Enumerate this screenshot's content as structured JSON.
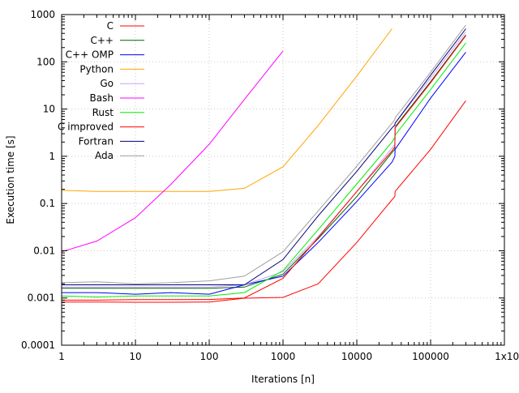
{
  "chart_data": {
    "type": "line",
    "title": "",
    "xlabel": "Iterations [n]",
    "ylabel": "Execution time [s]",
    "xscale": "log",
    "yscale": "log",
    "xlim": [
      1,
      1000000
    ],
    "ylim": [
      0.0001,
      1000
    ],
    "grid": true,
    "legend_position": "top-left",
    "x_tick_labels": [
      "1",
      "10",
      "100",
      "1000",
      "10000",
      "100000",
      "1x10^6"
    ],
    "y_tick_labels": [
      "0.0001",
      "0.001",
      "0.01",
      "0.1",
      "1",
      "10",
      "100",
      "1000"
    ],
    "series": [
      {
        "name": "C",
        "color": "#ff0000",
        "x": [
          1,
          3,
          10,
          30,
          100,
          300,
          1000,
          3000,
          10000,
          30000,
          32768,
          33000,
          100000,
          300000
        ],
        "y": [
          0.00082,
          0.00082,
          0.00081,
          0.00081,
          0.00082,
          0.00099,
          0.00103,
          0.002,
          0.015,
          0.12,
          0.14,
          0.18,
          1.4,
          15
        ]
      },
      {
        "name": "C++",
        "color": "#006400",
        "x": [
          1,
          3,
          10,
          30,
          100,
          300,
          1000,
          3000,
          10000,
          30000,
          32768,
          33000,
          100000,
          300000
        ],
        "y": [
          0.0016,
          0.0016,
          0.0016,
          0.0016,
          0.0016,
          0.0017,
          0.0032,
          0.018,
          0.14,
          1.2,
          1.4,
          4.2,
          38,
          370
        ]
      },
      {
        "name": "C++ OMP",
        "color": "#0000ff",
        "x": [
          1,
          3,
          10,
          30,
          100,
          300,
          1000,
          3000,
          10000,
          30000,
          32768,
          33000,
          100000,
          300000
        ],
        "y": [
          0.0013,
          0.0013,
          0.0012,
          0.0013,
          0.0012,
          0.0019,
          0.0029,
          0.015,
          0.11,
          0.75,
          1.0,
          1.4,
          17,
          160
        ]
      },
      {
        "name": "Python",
        "color": "#ffa500",
        "x": [
          1,
          3,
          10,
          30,
          100,
          300,
          1000,
          3000,
          10000,
          30000
        ],
        "y": [
          0.19,
          0.18,
          0.18,
          0.18,
          0.18,
          0.21,
          0.6,
          4.5,
          50,
          500
        ]
      },
      {
        "name": "Go",
        "color": "#c8a0ff",
        "x": [
          1,
          3,
          10,
          30,
          100,
          300,
          1000,
          3000,
          10000,
          30000,
          32768,
          33000,
          100000,
          300000
        ],
        "y": [
          0.0017,
          0.0017,
          0.0017,
          0.0017,
          0.0017,
          0.0019,
          0.0036,
          0.02,
          0.18,
          1.5,
          1.8,
          5.0,
          45,
          430
        ]
      },
      {
        "name": "Bash",
        "color": "#ff00ff",
        "x": [
          1,
          3,
          10,
          30,
          100,
          300,
          1000
        ],
        "y": [
          0.0095,
          0.016,
          0.05,
          0.25,
          1.8,
          16,
          170
        ]
      },
      {
        "name": "Rust",
        "color": "#00ee00",
        "x": [
          1,
          3,
          10,
          30,
          100,
          300,
          1000,
          3000,
          10000,
          30000,
          32768,
          33000,
          100000,
          300000
        ],
        "y": [
          0.0011,
          0.00105,
          0.0011,
          0.0011,
          0.0011,
          0.0013,
          0.0038,
          0.028,
          0.26,
          2.0,
          2.5,
          2.8,
          26,
          250
        ]
      },
      {
        "name": "C improved",
        "color": "#ff0000",
        "x": [
          1,
          3,
          10,
          30,
          100,
          300,
          1000,
          3000,
          10000,
          30000,
          32768,
          33000,
          100000,
          300000
        ],
        "y": [
          0.0009,
          0.0009,
          0.00092,
          0.00092,
          0.00093,
          0.001,
          0.0026,
          0.019,
          0.18,
          1.3,
          1.6,
          4.0,
          36,
          360
        ]
      },
      {
        "name": "Fortran",
        "color": "#000080",
        "x": [
          1,
          3,
          10,
          30,
          100,
          300,
          1000,
          3000,
          10000,
          30000,
          32768,
          33000,
          100000,
          300000
        ],
        "y": [
          0.0019,
          0.0019,
          0.0019,
          0.0019,
          0.0019,
          0.0019,
          0.0065,
          0.055,
          0.48,
          4.0,
          4.6,
          5.0,
          52,
          500
        ]
      },
      {
        "name": "Ada",
        "color": "#a0a0a0",
        "x": [
          1,
          3,
          10,
          30,
          100,
          300,
          1000,
          3000,
          10000,
          30000,
          32768,
          33000,
          100000,
          300000
        ],
        "y": [
          0.0021,
          0.0022,
          0.002,
          0.0021,
          0.0023,
          0.0029,
          0.0095,
          0.07,
          0.62,
          5.0,
          6.0,
          6.5,
          60,
          600
        ]
      }
    ]
  }
}
